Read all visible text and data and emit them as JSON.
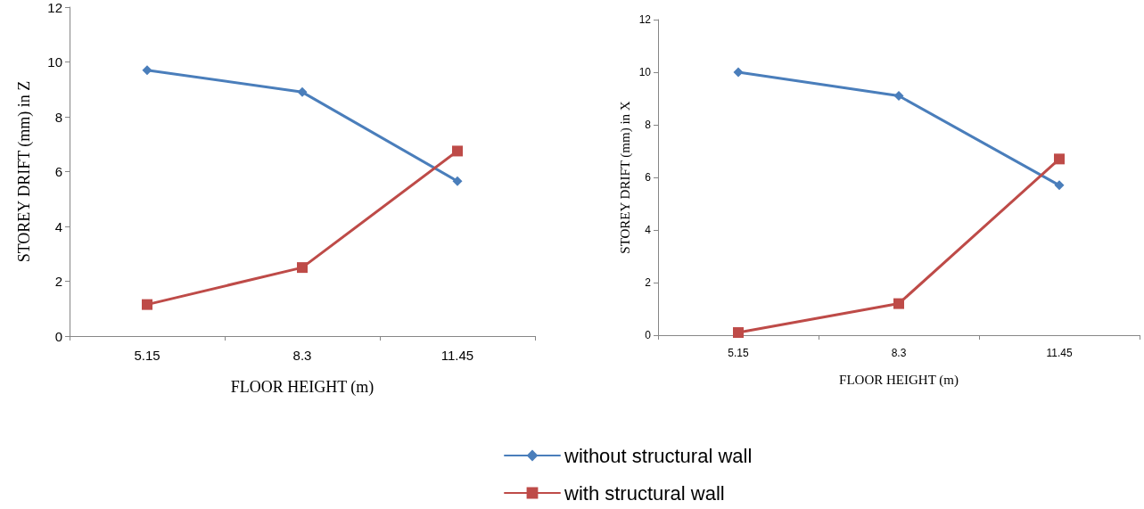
{
  "chart_data": [
    {
      "type": "line",
      "xlabel": "FLOOR HEIGHT (m)",
      "ylabel": "STOREY DRIFT (mm) in Z",
      "categories": [
        "5.15",
        "8.3",
        "11.45"
      ],
      "ylim": [
        0,
        12
      ],
      "yticks": [
        0,
        2,
        4,
        6,
        8,
        10,
        12
      ],
      "grid": false,
      "legend": false,
      "series": [
        {
          "color": "#4a7ebb",
          "marker": "diamond",
          "values": [
            9.7,
            8.9,
            5.65
          ]
        },
        {
          "color": "#be4b48",
          "marker": "square",
          "values": [
            1.15,
            2.5,
            6.75
          ]
        }
      ]
    },
    {
      "type": "line",
      "xlabel": "FLOOR HEIGHT (m)",
      "ylabel": "STOREY DRIFT (mm) in X",
      "categories": [
        "5.15",
        "8.3",
        "11.45"
      ],
      "ylim": [
        0,
        12
      ],
      "yticks": [
        0,
        2,
        4,
        6,
        8,
        10,
        12
      ],
      "grid": false,
      "legend": "bottom",
      "series": [
        {
          "name": "without structural wall",
          "color": "#4a7ebb",
          "marker": "diamond",
          "values": [
            10.0,
            9.1,
            5.7
          ]
        },
        {
          "name": "with structural wall",
          "color": "#be4b48",
          "marker": "square",
          "values": [
            0.1,
            1.2,
            6.7
          ]
        }
      ]
    }
  ]
}
